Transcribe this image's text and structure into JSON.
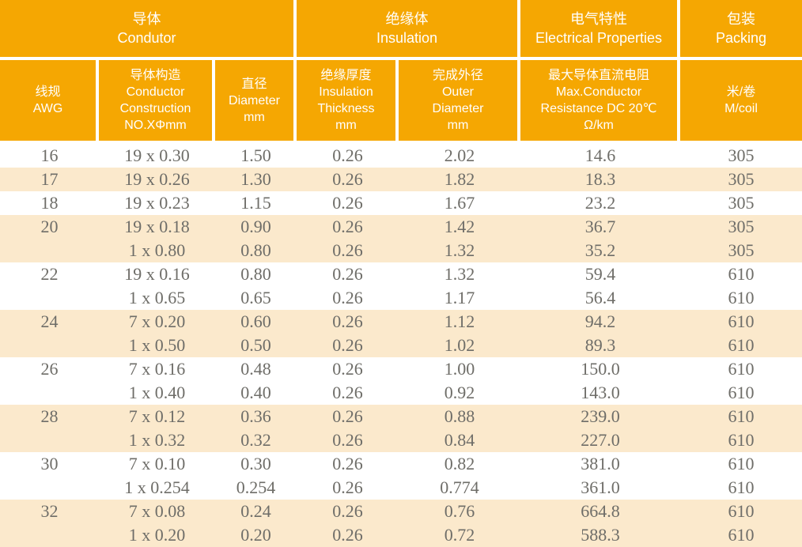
{
  "colors": {
    "header_bg": "#f5a702",
    "shaded_row_bg": "#fbe9cc",
    "data_text": "#6e6d68",
    "header_text": "#ffffff"
  },
  "header": {
    "groups": [
      {
        "zh": "导体",
        "en": "Condutor"
      },
      {
        "zh": "绝缘体",
        "en": "Insulation"
      },
      {
        "zh": "电气特性",
        "en": "Electrical Properties"
      },
      {
        "zh": "包装",
        "en": "Packing"
      }
    ],
    "columns": [
      {
        "lines": [
          "线规",
          "AWG"
        ]
      },
      {
        "lines": [
          "导体构造",
          "Conductor",
          "Construction",
          "NO.XΦmm"
        ]
      },
      {
        "lines": [
          "直径",
          "Diameter",
          "mm"
        ]
      },
      {
        "lines": [
          "绝缘厚度",
          "Insulation",
          "Thickness",
          "mm"
        ]
      },
      {
        "lines": [
          "完成外径",
          "Outer",
          "Diameter",
          "mm"
        ]
      },
      {
        "lines": [
          "最大导体直流电阻",
          "Max.Conductor",
          "Resistance DC 20℃",
          "Ω/km"
        ]
      },
      {
        "lines": [
          "米/卷",
          "M/coil"
        ]
      }
    ]
  },
  "rows": [
    {
      "shaded": false,
      "cells": [
        "16",
        "19 x 0.30",
        "1.50",
        "0.26",
        "2.02",
        "14.6",
        "305"
      ]
    },
    {
      "shaded": true,
      "cells": [
        "17",
        "19 x 0.26",
        "1.30",
        "0.26",
        "1.82",
        "18.3",
        "305"
      ]
    },
    {
      "shaded": false,
      "cells": [
        "18",
        "19 x 0.23",
        "1.15",
        "0.26",
        "1.67",
        "23.2",
        "305"
      ]
    },
    {
      "shaded": true,
      "cells": [
        "20",
        "19 x 0.18",
        "0.90",
        "0.26",
        "1.42",
        "36.7",
        "305"
      ]
    },
    {
      "shaded": true,
      "cells": [
        "",
        "1 x 0.80",
        "0.80",
        "0.26",
        "1.32",
        "35.2",
        "305"
      ]
    },
    {
      "shaded": false,
      "cells": [
        "22",
        "19 x 0.16",
        "0.80",
        "0.26",
        "1.32",
        "59.4",
        "610"
      ]
    },
    {
      "shaded": false,
      "cells": [
        "",
        "1 x 0.65",
        "0.65",
        "0.26",
        "1.17",
        "56.4",
        "610"
      ]
    },
    {
      "shaded": true,
      "cells": [
        "24",
        "7 x 0.20",
        "0.60",
        "0.26",
        "1.12",
        "94.2",
        "610"
      ]
    },
    {
      "shaded": true,
      "cells": [
        "",
        "1 x 0.50",
        "0.50",
        "0.26",
        "1.02",
        "89.3",
        "610"
      ]
    },
    {
      "shaded": false,
      "cells": [
        "26",
        "7 x 0.16",
        "0.48",
        "0.26",
        "1.00",
        "150.0",
        "610"
      ]
    },
    {
      "shaded": false,
      "cells": [
        "",
        "1 x 0.40",
        "0.40",
        "0.26",
        "0.92",
        "143.0",
        "610"
      ]
    },
    {
      "shaded": true,
      "cells": [
        "28",
        "7 x 0.12",
        "0.36",
        "0.26",
        "0.88",
        "239.0",
        "610"
      ]
    },
    {
      "shaded": true,
      "cells": [
        "",
        "1 x 0.32",
        "0.32",
        "0.26",
        "0.84",
        "227.0",
        "610"
      ]
    },
    {
      "shaded": false,
      "cells": [
        "30",
        "7 x 0.10",
        "0.30",
        "0.26",
        "0.82",
        "381.0",
        "610"
      ]
    },
    {
      "shaded": false,
      "cells": [
        "",
        "1 x 0.254",
        "0.254",
        "0.26",
        "0.774",
        "361.0",
        "610"
      ]
    },
    {
      "shaded": true,
      "cells": [
        "32",
        "7 x 0.08",
        "0.24",
        "0.26",
        "0.76",
        "664.8",
        "610"
      ]
    },
    {
      "shaded": true,
      "cells": [
        "",
        "1 x 0.20",
        "0.20",
        "0.26",
        "0.72",
        "588.3",
        "610"
      ]
    }
  ]
}
